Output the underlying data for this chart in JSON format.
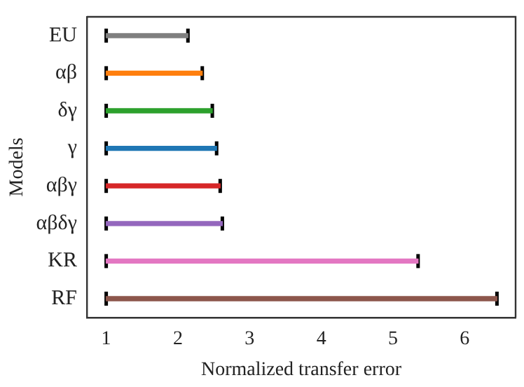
{
  "chart_data": {
    "type": "bar",
    "orientation": "horizontal",
    "xlabel": "Normalized transfer error",
    "ylabel": "Models",
    "categories": [
      "EU",
      "αβ",
      "δγ",
      "γ",
      "αβγ",
      "αβδγ",
      "KR",
      "RF"
    ],
    "base": [
      1,
      1,
      1,
      1,
      1,
      1,
      1,
      1
    ],
    "values": [
      1.14,
      1.34,
      1.48,
      1.54,
      1.59,
      1.62,
      4.35,
      5.45
    ],
    "errors": [
      [
        1,
        2.14
      ],
      [
        1,
        2.34
      ],
      [
        1,
        2.48
      ],
      [
        1,
        2.54
      ],
      [
        1,
        2.59
      ],
      [
        1,
        2.62
      ],
      [
        1,
        5.35
      ],
      [
        1,
        6.45
      ]
    ],
    "colors": [
      "#7f7f7f",
      "#ff7f0e",
      "#2ca02c",
      "#1f77b4",
      "#d62728",
      "#9467bd",
      "#e377c2",
      "#8c564b"
    ],
    "xlim": [
      0.73,
      6.71
    ],
    "xticks": [
      1,
      2,
      3,
      4,
      5,
      6
    ],
    "grid": false,
    "legend": false
  }
}
